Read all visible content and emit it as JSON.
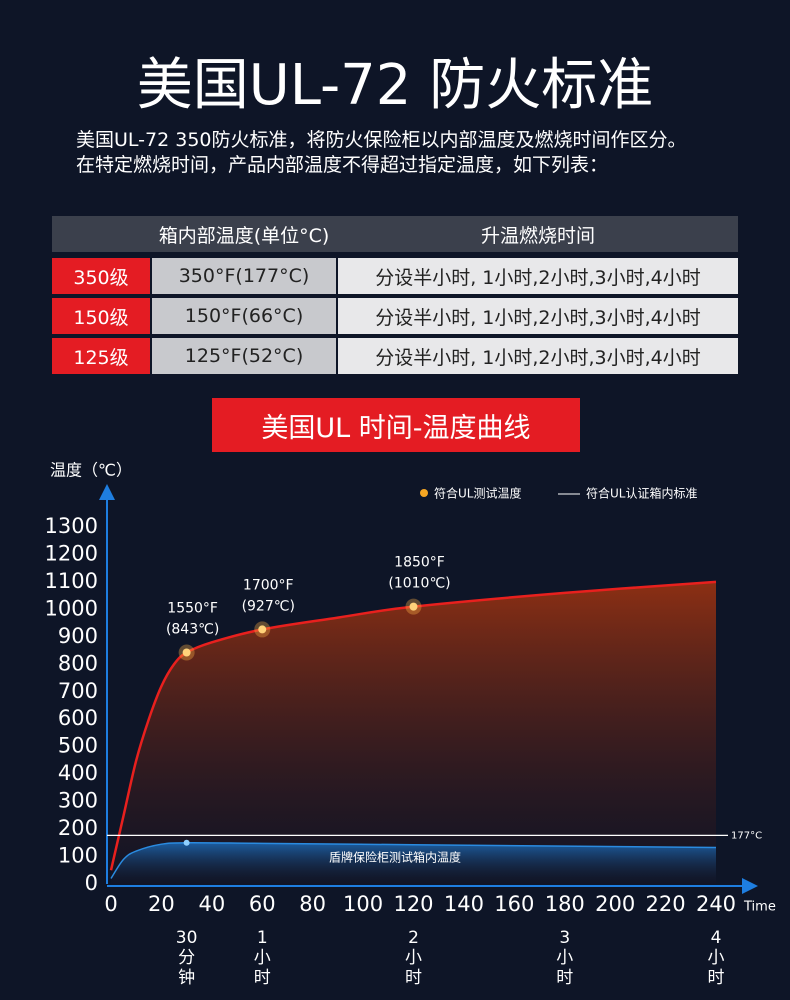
{
  "header": {
    "title": "美国UL-72 防火标准",
    "subtitle": [
      "美国UL-72  350防火标准，将防火保险柜以内部温度及燃烧时间作区分。",
      "在特定燃烧时间，产品内部温度不得超过指定温度，如下列表："
    ]
  },
  "table": {
    "header": [
      "箱内部温度(单位°C)",
      "升温燃烧时间"
    ],
    "rows": [
      [
        "350级",
        "350°F(177°C)",
        "分设半小时, 1小时,2小时,3小时,4小时"
      ],
      [
        "150级",
        "150°F(66°C)",
        "分设半小时, 1小时,2小时,3小时,4小时"
      ],
      [
        "125级",
        "125°F(52°C)",
        "分设半小时, 1小时,2小时,3小时,4小时"
      ]
    ]
  },
  "chart_data": {
    "type": "line",
    "title": "美国UL 时间-温度曲线",
    "y_label": "温度（℃）",
    "x_label": "Time",
    "xlim": [
      0,
      240
    ],
    "xticks": [
      0,
      20,
      40,
      60,
      80,
      100,
      120,
      140,
      160,
      180,
      200,
      220,
      240
    ],
    "ylim": [
      0,
      1300
    ],
    "yticks": [
      0,
      100,
      200,
      300,
      400,
      500,
      600,
      700,
      800,
      900,
      1000,
      1100,
      1200,
      1300
    ],
    "series": [
      {
        "name": "符合UL测试温度",
        "color": "#e8201e",
        "x": [
          0,
          5,
          10,
          15,
          20,
          25,
          30,
          40,
          60,
          90,
          120,
          180,
          240
        ],
        "values": [
          50,
          250,
          450,
          600,
          720,
          800,
          843,
          880,
          927,
          970,
          1010,
          1060,
          1100
        ]
      },
      {
        "name": "盾牌保险柜测试箱内温度",
        "color": "#2a8be0",
        "x": [
          0,
          5,
          10,
          20,
          30,
          60,
          120,
          180,
          240
        ],
        "values": [
          20,
          90,
          120,
          145,
          150,
          148,
          143,
          138,
          133
        ]
      }
    ],
    "limit_line": {
      "name": "符合UL认证箱内标准",
      "value": 177,
      "label": "177°C"
    },
    "annotations": [
      {
        "x": 30,
        "y": 843,
        "lines": [
          "1550°F",
          "(843℃)"
        ]
      },
      {
        "x": 60,
        "y": 927,
        "lines": [
          "1700°F",
          "(927℃)"
        ]
      },
      {
        "x": 120,
        "y": 1010,
        "lines": [
          "1850°F",
          "(1010℃)"
        ]
      }
    ],
    "time_labels": [
      {
        "x": 30,
        "label": [
          "30",
          "分",
          "钟"
        ]
      },
      {
        "x": 60,
        "label": [
          "1",
          "小",
          "时"
        ]
      },
      {
        "x": 120,
        "label": [
          "2",
          "小",
          "时"
        ]
      },
      {
        "x": 180,
        "label": [
          "3",
          "小",
          "时"
        ]
      },
      {
        "x": 240,
        "label": [
          "4",
          "小",
          "时"
        ]
      }
    ]
  }
}
